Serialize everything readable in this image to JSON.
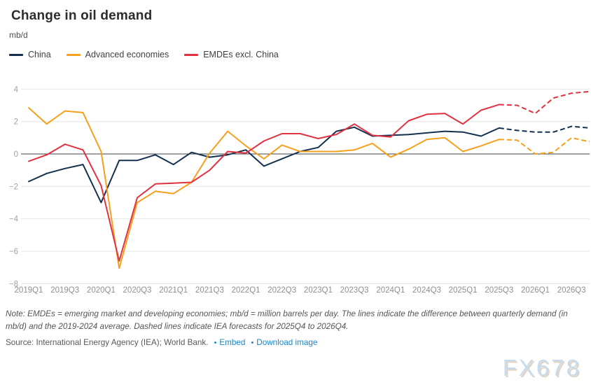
{
  "title": "Change in oil demand",
  "unit": "mb/d",
  "legend": {
    "items": [
      {
        "label": "China"
      },
      {
        "label": "Advanced economies"
      },
      {
        "label": "EMDEs excl. China"
      }
    ]
  },
  "chart_data": {
    "type": "line",
    "x": [
      "2019Q1",
      "2019Q2",
      "2019Q3",
      "2019Q4",
      "2020Q1",
      "2020Q2",
      "2020Q3",
      "2020Q4",
      "2021Q1",
      "2021Q2",
      "2021Q3",
      "2021Q4",
      "2022Q1",
      "2022Q2",
      "2022Q3",
      "2022Q4",
      "2023Q1",
      "2023Q2",
      "2023Q3",
      "2023Q4",
      "2024Q1",
      "2024Q2",
      "2024Q3",
      "2024Q4",
      "2025Q1",
      "2025Q2",
      "2025Q3",
      "2025Q4",
      "2026Q1",
      "2026Q2",
      "2026Q3",
      "2026Q4"
    ],
    "x_tick_every": 2,
    "ylim": [
      -8,
      4
    ],
    "yticks": [
      {
        "value": 4,
        "label": "4"
      },
      {
        "value": 2,
        "label": "2"
      },
      {
        "value": 0,
        "label": "0"
      },
      {
        "value": -2,
        "label": "−2"
      },
      {
        "value": -4,
        "label": "−4"
      },
      {
        "value": -6,
        "label": "−6"
      },
      {
        "value": -8,
        "label": "−8"
      }
    ],
    "grid": true,
    "legend_position": "top-left",
    "forecast_start": "2025Q4",
    "forecast_start_index": 27,
    "series": [
      {
        "name": "China",
        "color": "#14304f",
        "values": [
          -1.7,
          -1.2,
          -0.9,
          -0.65,
          -3.0,
          -0.4,
          -0.4,
          -0.05,
          -0.65,
          0.1,
          -0.2,
          -0.05,
          0.25,
          -0.75,
          -0.3,
          0.15,
          0.4,
          1.4,
          1.65,
          1.1,
          1.15,
          1.2,
          1.3,
          1.4,
          1.35,
          1.1,
          1.6,
          1.45,
          1.35,
          1.35,
          1.7,
          1.6
        ]
      },
      {
        "name": "Advanced economies",
        "color": "#f7a01e",
        "values": [
          2.85,
          1.85,
          2.65,
          2.55,
          0.15,
          -7.05,
          -3.0,
          -2.3,
          -2.45,
          -1.75,
          0.05,
          1.4,
          0.5,
          -0.3,
          0.55,
          0.15,
          0.15,
          0.15,
          0.25,
          0.65,
          -0.2,
          0.3,
          0.9,
          1.0,
          0.15,
          0.5,
          0.9,
          0.85,
          0.0,
          0.1,
          1.0,
          0.75
        ]
      },
      {
        "name": "EMDEs excl. China",
        "color": "#e13241",
        "values": [
          -0.45,
          -0.05,
          0.6,
          0.25,
          -1.95,
          -6.6,
          -2.7,
          -1.85,
          -1.8,
          -1.75,
          -1.0,
          0.15,
          0.05,
          0.8,
          1.25,
          1.25,
          0.95,
          1.2,
          1.85,
          1.15,
          1.05,
          2.05,
          2.45,
          2.5,
          1.85,
          2.7,
          3.05,
          3.0,
          2.5,
          3.45,
          3.75,
          3.85
        ]
      }
    ]
  },
  "note": "Note: EMDEs = emerging market and developing economies; mb/d = million barrels per day. The lines indicate the difference between quarterly demand (in mb/d) and the 2019-2024 average. Dashed lines indicate IEA forecasts for 2025Q4 to 2026Q4.",
  "source": {
    "prefix": "Source: International Energy Agency (IEA); World Bank.",
    "links": [
      {
        "label": "Embed"
      },
      {
        "label": "Download image"
      }
    ]
  },
  "watermark": "FX678",
  "colors": {
    "link": "#1a86c8",
    "zero_line": "#404040",
    "grid_line": "#e4e4e4",
    "y_axis_text": "#a3a3a3",
    "x_axis_text": "#8f8f8f"
  }
}
